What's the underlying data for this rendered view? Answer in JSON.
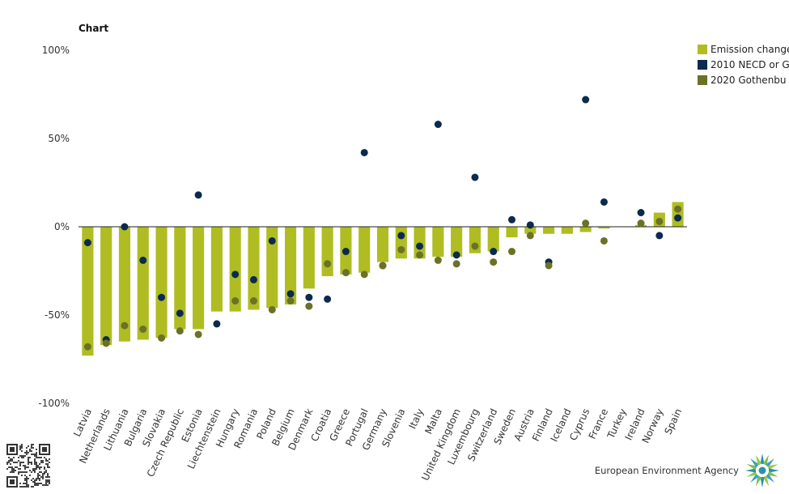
{
  "chart_data": {
    "type": "bar",
    "title": "Chart",
    "ylim": [
      -100,
      100
    ],
    "yticks": [
      {
        "value": 100,
        "label": "100%"
      },
      {
        "value": 50,
        "label": "50%"
      },
      {
        "value": 0,
        "label": "0%"
      },
      {
        "value": -50,
        "label": "-50%"
      },
      {
        "value": -100,
        "label": "-100%"
      }
    ],
    "categories": [
      "Latvia",
      "Netherlands",
      "Lithuania",
      "Bulgaria",
      "Slovakia",
      "Czech Republic",
      "Estonia",
      "Liechtenstein",
      "Hungary",
      "Romania",
      "Poland",
      "Belgium",
      "Denmark",
      "Croatia",
      "Greece",
      "Portugal",
      "Germany",
      "Slovenia",
      "Italy",
      "Malta",
      "United Kingdom",
      "Luxembourg",
      "Switzerland",
      "Sweden",
      "Austria",
      "Finland",
      "Iceland",
      "Cyprus",
      "France",
      "Turkey",
      "Ireland",
      "Norway",
      "Spain"
    ],
    "series": [
      {
        "name": "Emission change",
        "kind": "bar",
        "color": "#afbd22",
        "values": [
          -73,
          -67,
          -65,
          -64,
          -63,
          -58,
          -58,
          -48,
          -48,
          -47,
          -46,
          -44,
          -35,
          -28,
          -27,
          -26,
          -20,
          -18,
          -18,
          -17,
          -17,
          -15,
          -14,
          -6,
          -4,
          -4,
          -4,
          -3,
          -1,
          null,
          1,
          8,
          14
        ]
      },
      {
        "name": "2010 NECD or G",
        "kind": "dot",
        "color": "#0b2a4d",
        "values": [
          -9,
          -64,
          0,
          -19,
          -40,
          -49,
          18,
          -55,
          -27,
          -30,
          -8,
          -38,
          -40,
          -41,
          -14,
          42,
          -22,
          -5,
          -11,
          58,
          -16,
          28,
          -14,
          4,
          1,
          -20,
          null,
          72,
          14,
          null,
          8,
          -5,
          5
        ]
      },
      {
        "name": "2020 Gothenbu",
        "kind": "dot",
        "color": "#6b7127",
        "values": [
          -68,
          -66,
          -56,
          -58,
          -63,
          -59,
          -61,
          null,
          -42,
          -42,
          -47,
          -42,
          -45,
          -21,
          -26,
          -27,
          -22,
          -13,
          -16,
          -19,
          -21,
          -11,
          -20,
          -14,
          -5,
          -22,
          null,
          2,
          -8,
          null,
          2,
          3,
          10
        ]
      }
    ],
    "legend_position": "top-right",
    "grid": false
  },
  "footer": {
    "brand": "European Environment Agency",
    "logo_icon": "eea-logo-icon",
    "qr_icon": "qr-code-icon"
  }
}
